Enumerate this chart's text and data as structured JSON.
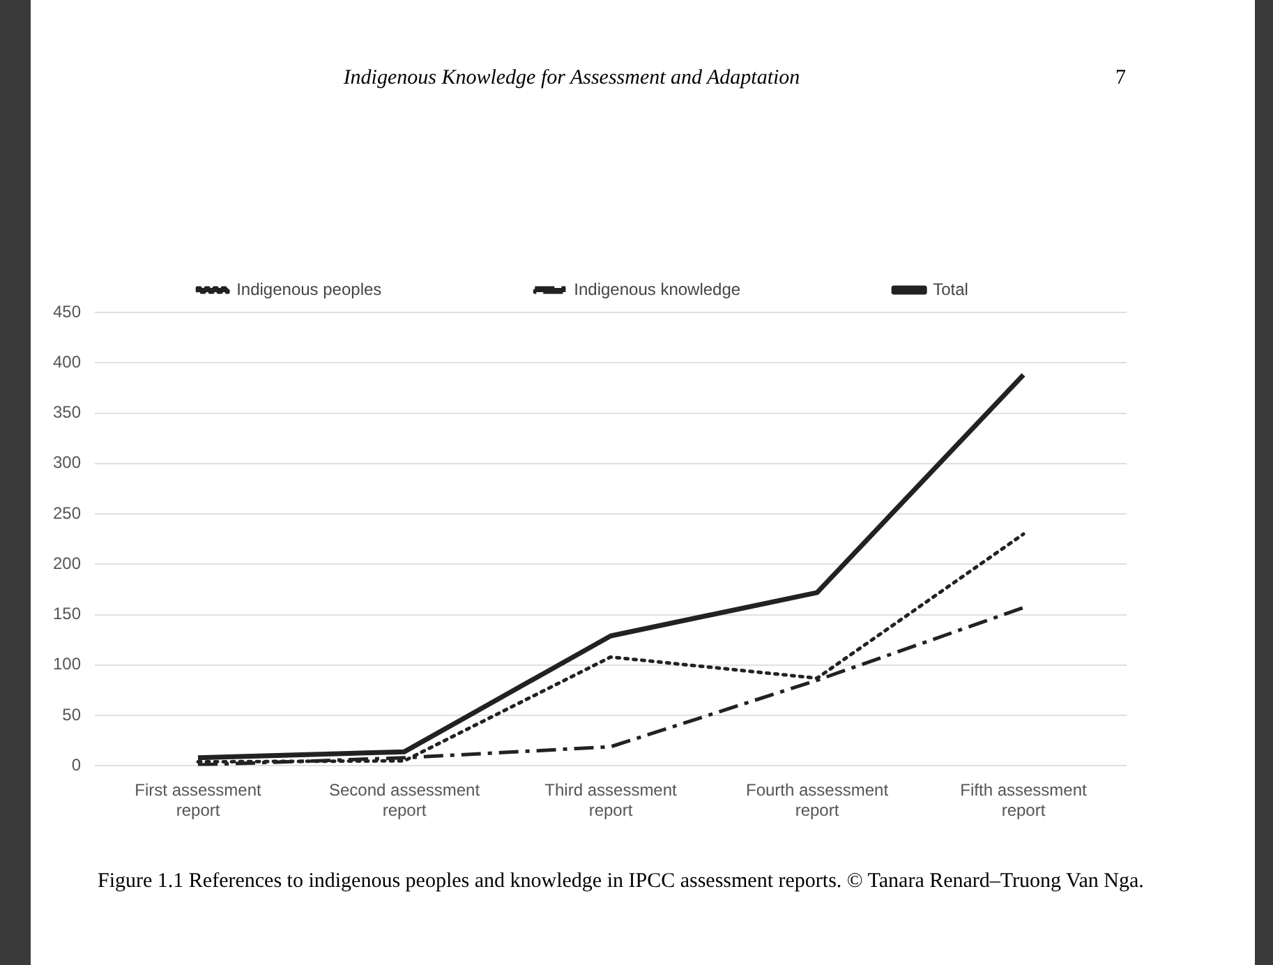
{
  "chart_data": {
    "type": "line",
    "title": "Indigenous Knowledge for Assessment and Adaptation",
    "annotations": [
      "7",
      "Figure 1.1  References to indigenous peoples and knowledge in IPCC assessment reports. © Tanara Renard–Truong Van Nga."
    ],
    "categories": [
      "First assessment report",
      "Second assessment report",
      "Third assessment report",
      "Fourth assessment report",
      "Fifth assessment report"
    ],
    "series": [
      {
        "name": "Indigenous peoples",
        "color": "#222222",
        "line_style": "dotted",
        "values": [
          4,
          5,
          108,
          87,
          230
        ]
      },
      {
        "name": "Indigenous knowledge",
        "color": "#222222",
        "line_style": "dashed",
        "values": [
          1,
          8,
          19,
          85,
          157
        ]
      },
      {
        "name": "Total",
        "color": "#222222",
        "line_style": "solid",
        "values": [
          8,
          14,
          129,
          172,
          388
        ]
      }
    ],
    "ylim": [
      0,
      450
    ],
    "yticks": [
      0,
      50,
      100,
      150,
      200,
      250,
      300,
      350,
      400,
      450
    ],
    "grid": "y",
    "legend": "top",
    "marker": "none"
  }
}
